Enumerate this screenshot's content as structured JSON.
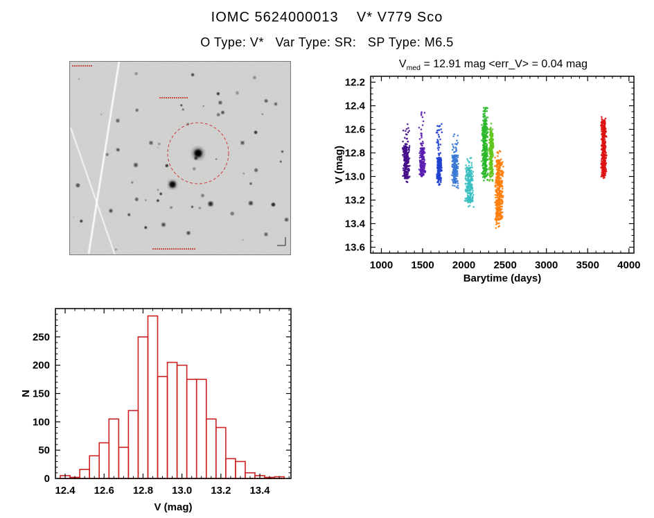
{
  "page": {
    "title": "IOMC 5624000013    V* V779 Sco",
    "subtitle": "O Type: V*   Var Type: SR:   SP Type: M6.5"
  },
  "lightcurve": {
    "title_prefix": "V",
    "title_sub": "med",
    "title_rest": " = 12.91 mag <err_V> = 0.04 mag",
    "v_med_mag": 12.91,
    "err_v_mag": 0.04
  },
  "chart_data": [
    {
      "type": "scatter",
      "title": "V_med = 12.91 mag <err_V> = 0.04 mag",
      "xlabel": "Barytime (days)",
      "ylabel": "V (mag)",
      "xlim": [
        870,
        4060
      ],
      "ylim": [
        12.15,
        13.65
      ],
      "y_axis_inverted_magnitudes": true,
      "xticks": [
        "1000",
        "1500",
        "2000",
        "2500",
        "3000",
        "3500",
        "4000"
      ],
      "yticks": [
        "12.2",
        "12.4",
        "12.6",
        "12.8",
        "13.0",
        "13.2",
        "13.4",
        "13.6"
      ],
      "x_minor_step": 100,
      "y_minor_step": 0.05,
      "clusters": [
        {
          "x_center": 1300,
          "x_halfwidth_days": 45,
          "v_min": 12.55,
          "v_max": 13.05,
          "v_core_min": 12.74,
          "v_core_max": 13.02,
          "n_points": 260,
          "color": "#45108a"
        },
        {
          "x_center": 1495,
          "x_halfwidth_days": 40,
          "v_min": 12.44,
          "v_max": 13.0,
          "v_core_min": 12.76,
          "v_core_max": 12.99,
          "n_points": 220,
          "color": "#5a1fb0"
        },
        {
          "x_center": 1700,
          "x_halfwidth_days": 35,
          "v_min": 12.55,
          "v_max": 13.08,
          "v_core_min": 12.84,
          "v_core_max": 13.05,
          "n_points": 220,
          "color": "#2040cf"
        },
        {
          "x_center": 1895,
          "x_halfwidth_days": 45,
          "v_min": 12.62,
          "v_max": 13.1,
          "v_core_min": 12.82,
          "v_core_max": 13.06,
          "n_points": 200,
          "color": "#3a78d4"
        },
        {
          "x_center": 2065,
          "x_halfwidth_days": 55,
          "v_min": 12.84,
          "v_max": 13.26,
          "v_core_min": 12.92,
          "v_core_max": 13.21,
          "n_points": 220,
          "color": "#38bfc0"
        },
        {
          "x_center": 2255,
          "x_halfwidth_days": 40,
          "v_min": 12.4,
          "v_max": 13.04,
          "v_core_min": 12.52,
          "v_core_max": 13.0,
          "n_points": 330,
          "color": "#2ab82a"
        },
        {
          "x_center": 2330,
          "x_halfwidth_days": 30,
          "v_min": 12.55,
          "v_max": 13.04,
          "v_core_min": 12.62,
          "v_core_max": 13.0,
          "n_points": 240,
          "color": "#63c51f"
        },
        {
          "x_center": 2425,
          "x_halfwidth_days": 55,
          "v_min": 12.78,
          "v_max": 13.46,
          "v_core_min": 12.86,
          "v_core_max": 13.38,
          "n_points": 380,
          "color": "#ff7d0a"
        },
        {
          "x_center": 3695,
          "x_halfwidth_days": 35,
          "v_min": 12.48,
          "v_max": 13.02,
          "v_core_min": 12.52,
          "v_core_max": 13.0,
          "n_points": 330,
          "color": "#dd1111"
        }
      ]
    },
    {
      "type": "bar",
      "title": "",
      "xlabel": "V (mag)",
      "ylabel": "N",
      "xlim": [
        12.35,
        13.56
      ],
      "ylim": [
        0,
        300
      ],
      "xticks": [
        "12.4",
        "12.6",
        "12.8",
        "13.0",
        "13.2",
        "13.4"
      ],
      "yticks": [
        "0",
        "50",
        "100",
        "150",
        "200",
        "250"
      ],
      "x_minor_step": 0.05,
      "y_minor_step": 10,
      "bin_width": 0.05,
      "bar_color": "#cc2222",
      "bin_centers": [
        12.4,
        12.45,
        12.5,
        12.55,
        12.6,
        12.65,
        12.7,
        12.75,
        12.8,
        12.85,
        12.9,
        12.95,
        13.0,
        13.05,
        13.1,
        13.15,
        13.2,
        13.25,
        13.3,
        13.35,
        13.4,
        13.45,
        13.5
      ],
      "values": [
        5,
        2,
        16,
        40,
        63,
        105,
        55,
        120,
        250,
        287,
        180,
        205,
        200,
        175,
        175,
        105,
        90,
        35,
        30,
        10,
        5,
        2,
        3
      ]
    }
  ],
  "finding_chart": {
    "target_circle_color": "#cc3333",
    "description": "finding-chart-star-field"
  }
}
